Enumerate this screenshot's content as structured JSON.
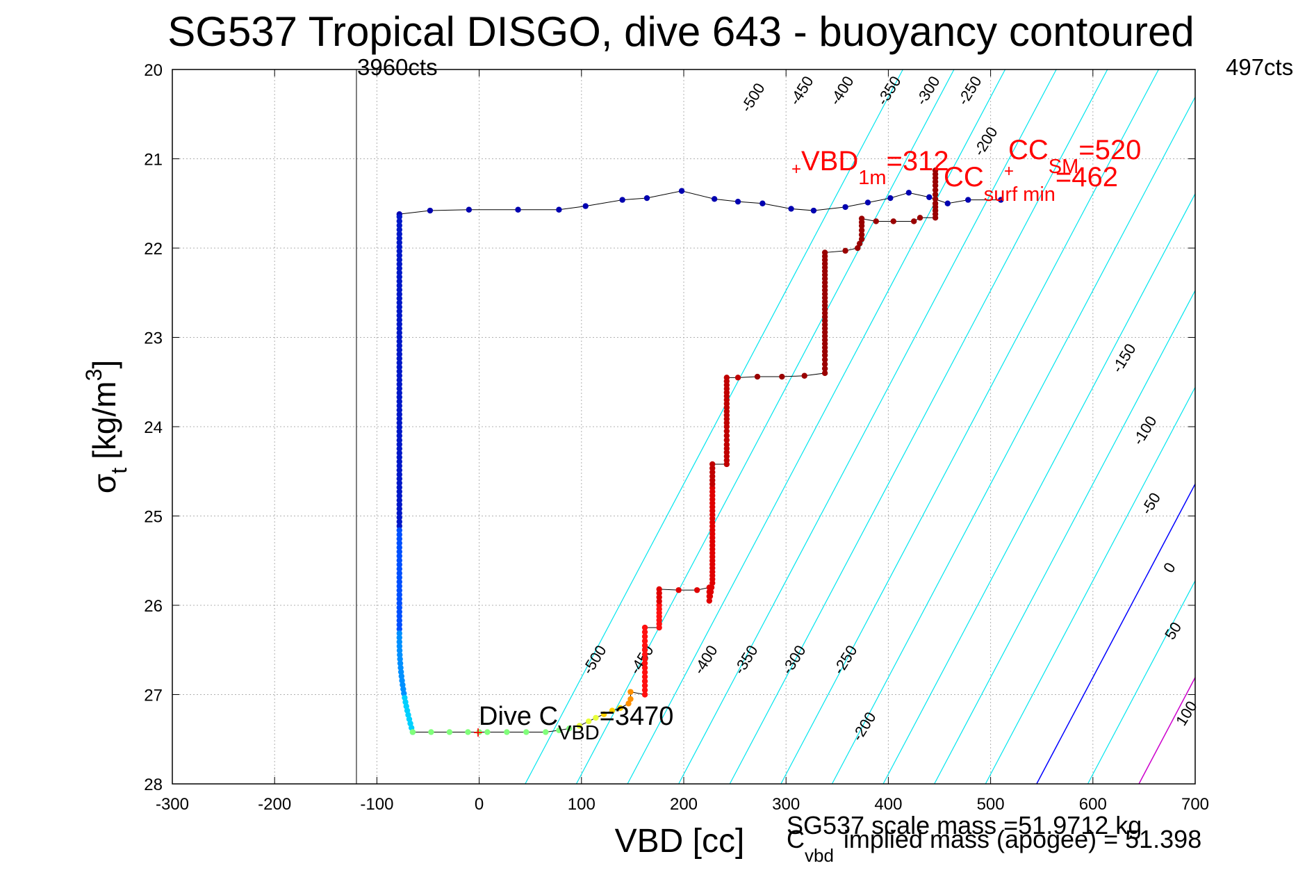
{
  "chart_data": {
    "type": "scatter",
    "title": "SG537 Tropical DISGO, dive 643 - buoyancy contoured",
    "xlabel": "VBD [cc]",
    "ylabel_main": "σ",
    "ylabel_sub": "t",
    "ylabel_unit": "[kg/m",
    "ylabel_sup": "3",
    "ylabel_close": "]",
    "xlim": [
      -300,
      700
    ],
    "ylim": [
      20,
      28
    ],
    "y_reversed": true,
    "grid": true,
    "xticks": [
      -300,
      -200,
      -100,
      0,
      100,
      200,
      300,
      400,
      500,
      600,
      700
    ],
    "yticks": [
      20,
      21,
      22,
      23,
      24,
      25,
      26,
      27,
      28
    ],
    "vertical_line_x": -120,
    "count_labels": {
      "left": "3960cts",
      "right": "497cts"
    },
    "contour_color": "#00e5ee",
    "contour_levels_top": [
      "-500",
      "-450",
      "-400",
      "-350",
      "-300",
      "-250",
      "-200"
    ],
    "contour_levels_right": [
      "-150",
      "-100",
      "-50",
      "0",
      "50",
      "100"
    ],
    "contour_levels_bottom": [
      "-500",
      "-450",
      "-400",
      "-350",
      "-300",
      "-250",
      "-200"
    ],
    "zero_contour_color": "#0000ff",
    "positive_contour_color": "#cc00cc",
    "annotations": {
      "vbd1m": {
        "main": "VBD",
        "sub": "1m",
        "value": "=312",
        "x": 312,
        "y": 21.13
      },
      "cc_sm": {
        "main": "CC",
        "sub": "SM",
        "value": "=520",
        "x": 520,
        "y": 21.13
      },
      "cc_surf": {
        "main": "CC",
        "sub": "surf min",
        "value": "=462"
      },
      "dive_c": {
        "main": "Dive C",
        "sub": "VBD",
        "value": "=3470",
        "x": 0,
        "y": 27.42
      }
    },
    "footer_mass": "SG537 scale mass =51.9712 kg",
    "footer_implied_main": "C",
    "footer_implied_sub": "vbd",
    "footer_implied_text": "implied mass (apogee) = 51.398",
    "series": [
      {
        "color_group": "descent-blue",
        "points": [
          [
            -78,
            21.62
          ],
          [
            -48,
            21.58
          ],
          [
            -10,
            21.57
          ],
          [
            38,
            21.57
          ],
          [
            78,
            21.57
          ],
          [
            104,
            21.53
          ],
          [
            140,
            21.46
          ],
          [
            164,
            21.44
          ],
          [
            198,
            21.36
          ],
          [
            230,
            21.45
          ],
          [
            253,
            21.48
          ],
          [
            277,
            21.5
          ],
          [
            305,
            21.56
          ],
          [
            327,
            21.58
          ],
          [
            358,
            21.54
          ],
          [
            380,
            21.49
          ],
          [
            402,
            21.44
          ],
          [
            420,
            21.38
          ],
          [
            440,
            21.43
          ],
          [
            458,
            21.5
          ],
          [
            478,
            21.46
          ],
          [
            510,
            21.46
          ]
        ]
      },
      {
        "color_group": "descent-column",
        "x_start": -78,
        "y_start": 21.65,
        "x_end": -65,
        "y_end": 27.42
      },
      {
        "color_group": "bottom-green",
        "points": [
          [
            -65,
            27.42
          ],
          [
            -47,
            27.42
          ],
          [
            -29,
            27.42
          ],
          [
            -11,
            27.42
          ],
          [
            0,
            27.42
          ],
          [
            8,
            27.42
          ],
          [
            27,
            27.42
          ],
          [
            46,
            27.42
          ],
          [
            65,
            27.42
          ],
          [
            78,
            27.4
          ],
          [
            88,
            27.38
          ]
        ]
      },
      {
        "color_group": "ascent-yellow-orange",
        "points": [
          [
            98,
            27.35
          ],
          [
            107,
            27.3
          ],
          [
            114,
            27.26
          ],
          [
            122,
            27.22
          ],
          [
            130,
            27.18
          ],
          [
            138,
            27.15
          ],
          [
            146,
            27.1
          ],
          [
            148,
            27.05
          ],
          [
            148,
            26.97
          ]
        ]
      },
      {
        "color_group": "ascent-red",
        "points": [
          [
            162,
            27.0
          ],
          [
            162,
            26.8
          ],
          [
            162,
            26.6
          ],
          [
            162,
            26.4
          ],
          [
            162,
            26.25
          ],
          [
            176,
            26.25
          ],
          [
            176,
            26.0
          ],
          [
            176,
            25.82
          ],
          [
            195,
            25.83
          ],
          [
            213,
            25.83
          ],
          [
            225,
            25.8
          ],
          [
            225,
            25.95
          ],
          [
            228,
            25.75
          ],
          [
            228,
            25.5
          ],
          [
            228,
            25.2
          ],
          [
            228,
            24.9
          ],
          [
            228,
            24.6
          ],
          [
            228,
            24.42
          ],
          [
            242,
            24.42
          ],
          [
            242,
            24.2
          ],
          [
            242,
            24.0
          ],
          [
            242,
            23.7
          ],
          [
            242,
            23.45
          ],
          [
            253,
            23.45
          ],
          [
            272,
            23.44
          ],
          [
            296,
            23.44
          ],
          [
            318,
            23.43
          ],
          [
            338,
            23.4
          ],
          [
            338,
            23.2
          ],
          [
            338,
            22.9
          ],
          [
            338,
            22.6
          ],
          [
            338,
            22.3
          ],
          [
            338,
            22.05
          ],
          [
            358,
            22.03
          ],
          [
            370,
            22.0
          ],
          [
            374,
            21.9
          ],
          [
            374,
            21.75
          ],
          [
            374,
            21.67
          ],
          [
            388,
            21.7
          ],
          [
            405,
            21.7
          ],
          [
            425,
            21.7
          ],
          [
            431,
            21.66
          ],
          [
            446,
            21.66
          ],
          [
            446,
            21.5
          ],
          [
            446,
            21.3
          ],
          [
            446,
            21.13
          ]
        ]
      }
    ]
  }
}
